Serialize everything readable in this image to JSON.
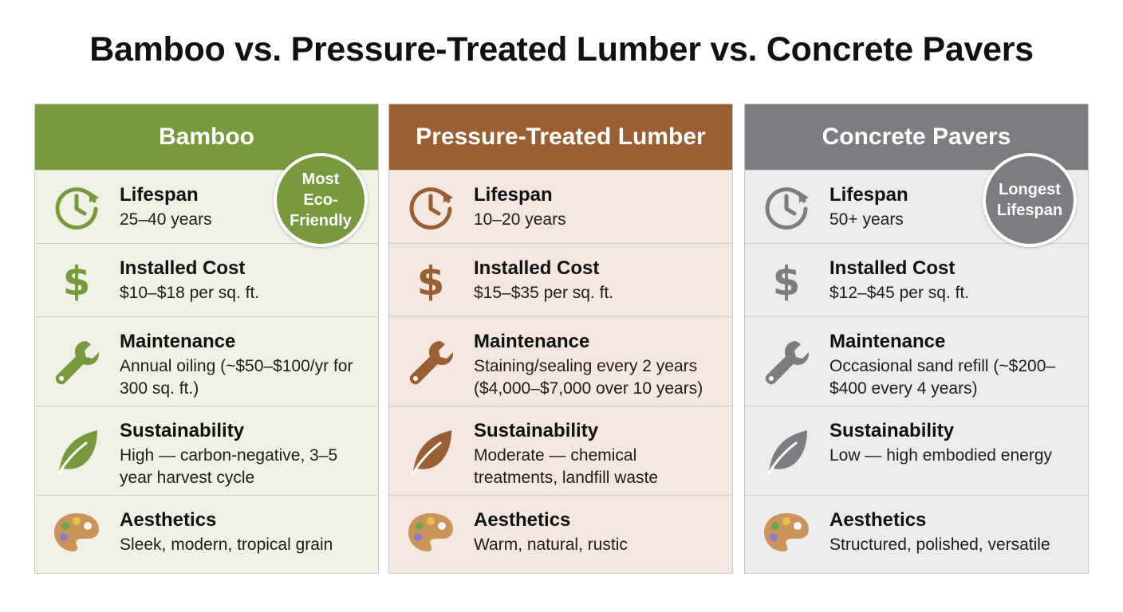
{
  "title": "Bamboo vs. Pressure-Treated Lumber vs. Concrete Pavers",
  "icons": [
    "clock-icon",
    "dollar-icon",
    "wrench-icon",
    "leaf-icon",
    "palette-icon"
  ],
  "colors": {
    "bamboo": "#78993d",
    "lumber": "#9a5e33",
    "pavers": "#7b7d80"
  },
  "columns": [
    {
      "name": "Bamboo",
      "badge": "Most Eco-Friendly",
      "rows": [
        {
          "label": "Lifespan",
          "value": "25–40 years"
        },
        {
          "label": "Installed Cost",
          "value": "$10–$18 per sq. ft."
        },
        {
          "label": "Maintenance",
          "value": "Annual oiling (~$50–$100/yr for 300 sq. ft.)"
        },
        {
          "label": "Sustainability",
          "value": "High — carbon-negative, 3–5 year harvest cycle"
        },
        {
          "label": "Aesthetics",
          "value": "Sleek, modern, tropical grain"
        }
      ]
    },
    {
      "name": "Pressure-Treated Lumber",
      "badge": "",
      "rows": [
        {
          "label": "Lifespan",
          "value": "10–20 years"
        },
        {
          "label": "Installed Cost",
          "value": "$15–$35 per sq. ft."
        },
        {
          "label": "Maintenance",
          "value": "Staining/sealing every 2 years ($4,000–$7,000 over 10 years)"
        },
        {
          "label": "Sustainability",
          "value": "Moderate — chemical treatments, landfill waste"
        },
        {
          "label": "Aesthetics",
          "value": "Warm, natural, rustic"
        }
      ]
    },
    {
      "name": "Concrete Pavers",
      "badge": "Longest Lifespan",
      "rows": [
        {
          "label": "Lifespan",
          "value": "50+ years"
        },
        {
          "label": "Installed Cost",
          "value": "$12–$45 per sq. ft."
        },
        {
          "label": "Maintenance",
          "value": "Occasional sand refill (~$200–$400 every 4 years)"
        },
        {
          "label": "Sustainability",
          "value": "Low — high embodied energy"
        },
        {
          "label": "Aesthetics",
          "value": "Structured, polished, versatile"
        }
      ]
    }
  ]
}
